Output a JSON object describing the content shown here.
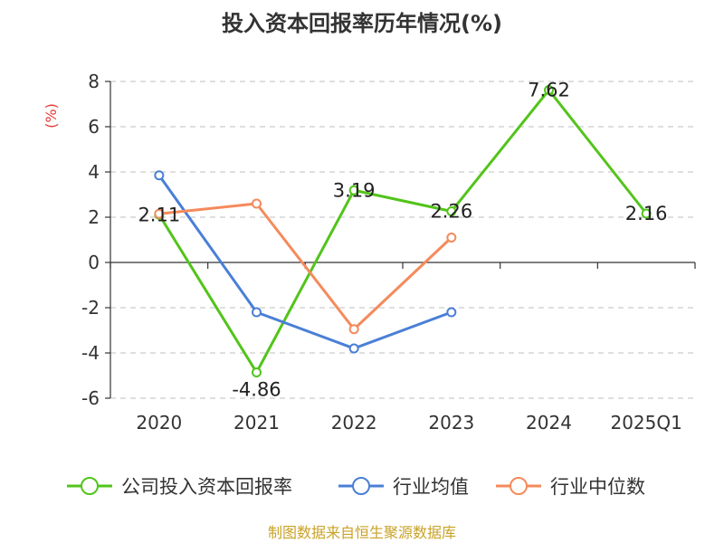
{
  "chart_data": {
    "type": "line",
    "title": "投入资本回报率历年情况(%)",
    "unit_label": "(%)",
    "categories": [
      "2020",
      "2021",
      "2022",
      "2023",
      "2024",
      "2025Q1"
    ],
    "ylim": [
      -6,
      8
    ],
    "yticks": [
      8,
      6,
      4,
      2,
      0,
      -2,
      -4,
      -6
    ],
    "grid": true,
    "legend_position": "bottom",
    "series": [
      {
        "name": "公司投入资本回报率",
        "color": "#52c41a",
        "values": [
          2.11,
          -4.86,
          3.19,
          2.26,
          7.62,
          2.16
        ],
        "labels": [
          "2.11",
          "-4.86",
          "3.19",
          "2.26",
          "7.62",
          "2.16"
        ]
      },
      {
        "name": "行业均值",
        "color": "#4a7fd6",
        "values": [
          3.85,
          -2.2,
          -3.8,
          -2.2,
          null,
          null
        ]
      },
      {
        "name": "行业中位数",
        "color": "#f58a5b",
        "values": [
          2.15,
          2.6,
          -2.95,
          1.1,
          null,
          null
        ]
      }
    ],
    "source": "制图数据来自恒生聚源数据库"
  }
}
